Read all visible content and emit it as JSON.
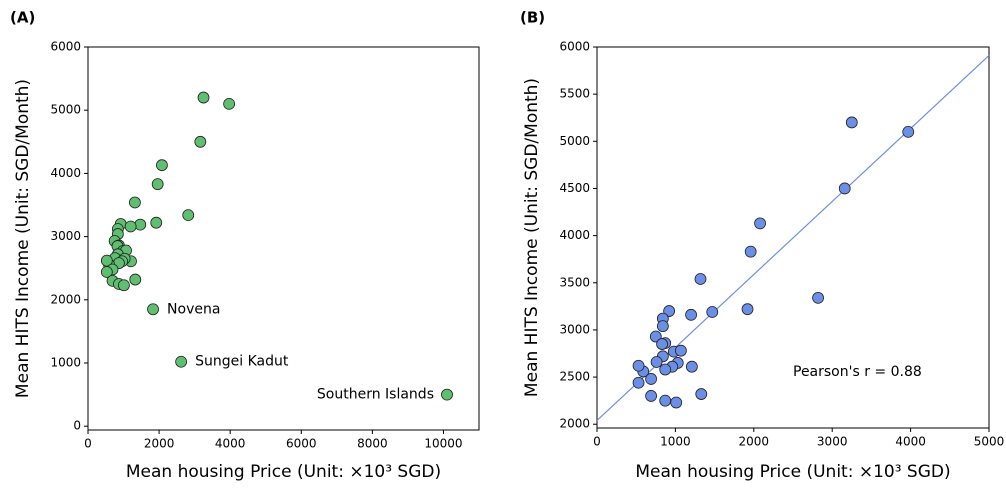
{
  "chart_data": [
    {
      "type": "scatter",
      "label": "(A)",
      "x_label": "Mean housing Price (Unit: ×10³ SGD)",
      "y_label": "Mean HITS Income (Unit: SGD/Month)",
      "color": "#5fbf70",
      "x": [
        3250,
        3970,
        3160,
        2080,
        1960,
        1320,
        2820,
        1920,
        1470,
        920,
        1200,
        840,
        840,
        750,
        870,
        830,
        980,
        1070,
        840,
        1210,
        1030,
        760,
        960,
        870,
        590,
        530,
        690,
        530,
        1330,
        690,
        870,
        1010,
        1830,
        2620,
        10100
      ],
      "values": [
        5200,
        5100,
        4500,
        4130,
        3830,
        3540,
        3340,
        3220,
        3190,
        3200,
        3160,
        3120,
        3040,
        2930,
        2860,
        2850,
        2770,
        2780,
        2720,
        2610,
        2650,
        2660,
        2610,
        2580,
        2560,
        2620,
        2480,
        2440,
        2320,
        2300,
        2250,
        2230,
        1850,
        1020,
        500
      ],
      "point_labels": [
        null,
        null,
        null,
        null,
        null,
        null,
        null,
        null,
        null,
        null,
        null,
        null,
        null,
        null,
        null,
        null,
        null,
        null,
        null,
        null,
        null,
        null,
        null,
        null,
        null,
        null,
        null,
        null,
        null,
        null,
        null,
        null,
        "Novena",
        "Sungei Kadut",
        "Southern Islands"
      ],
      "xlim": [
        0,
        11000
      ],
      "ylim": [
        -60,
        6000
      ],
      "xticks": [
        0,
        2000,
        4000,
        6000,
        8000,
        10000
      ],
      "yticks": [
        0,
        1000,
        2000,
        3000,
        4000,
        5000,
        6000
      ]
    },
    {
      "type": "scatter",
      "label": "(B)",
      "x_label": "Mean housing Price (Unit: ×10³ SGD)",
      "y_label": "Mean HITS Income (Unit: SGD/Month)",
      "color": "#6b8fe6",
      "x": [
        3250,
        3970,
        3160,
        2080,
        1960,
        1320,
        2820,
        1920,
        1470,
        920,
        1200,
        840,
        840,
        750,
        870,
        830,
        980,
        1070,
        840,
        1210,
        1030,
        760,
        960,
        870,
        590,
        530,
        690,
        530,
        1330,
        690,
        870,
        1010
      ],
      "values": [
        5200,
        5100,
        4500,
        4130,
        3830,
        3540,
        3340,
        3220,
        3190,
        3200,
        3160,
        3120,
        3040,
        2930,
        2860,
        2850,
        2770,
        2780,
        2720,
        2610,
        2650,
        2660,
        2610,
        2580,
        2560,
        2620,
        2480,
        2440,
        2320,
        2300,
        2250,
        2230
      ],
      "fit_line": {
        "color": "#6b8fe6",
        "x": [
          0,
          5000
        ],
        "y": [
          2040,
          5910
        ]
      },
      "annotation": "Pearson's r = 0.88",
      "xlim": [
        0,
        5000
      ],
      "ylim": [
        1960,
        6000
      ],
      "xticks": [
        0,
        1000,
        2000,
        3000,
        4000,
        5000
      ],
      "yticks": [
        2000,
        2500,
        3000,
        3500,
        4000,
        4500,
        5000,
        5500,
        6000
      ]
    }
  ]
}
